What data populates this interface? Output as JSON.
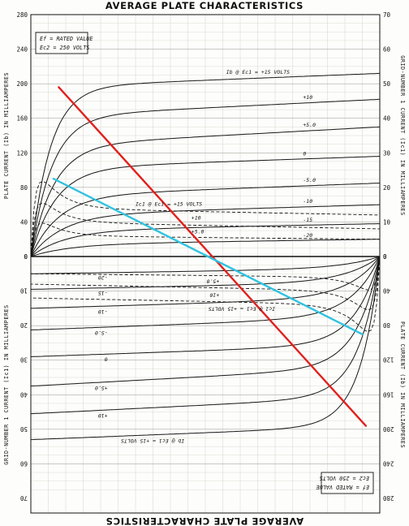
{
  "chart_data": {
    "type": "line",
    "title": "AVERAGE PLATE CHARACTERISTICS",
    "notes": [
      "Ef = RATED VALUE",
      "Ec2 = 250 VOLTS"
    ],
    "left_ylabel": "PLATE CURRENT (Ib) IN MILLIAMPERES",
    "right_ylabel": "GRID-NUMBER 1 CURRENT (Ic1) IN MILLIAMPERES",
    "left_ticks": [
      0,
      40,
      80,
      120,
      160,
      200,
      240,
      280
    ],
    "right_ticks": [
      0,
      10,
      20,
      30,
      40,
      50,
      60,
      70
    ],
    "ylim": [
      0,
      280
    ],
    "xlim": [
      0,
      1
    ],
    "plate_series": [
      {
        "label": "Ib @ Ec1 = +15 VOLTS",
        "sat": 196,
        "end": 212,
        "knee": 0.055
      },
      {
        "label": "+10",
        "sat": 162,
        "end": 182,
        "knee": 0.06
      },
      {
        "label": "+5.0",
        "sat": 128,
        "end": 150,
        "knee": 0.065
      },
      {
        "label": "0",
        "sat": 102,
        "end": 116,
        "knee": 0.07
      },
      {
        "label": "-5.0",
        "sat": 70,
        "end": 85,
        "knee": 0.08
      },
      {
        "label": "-10",
        "sat": 48,
        "end": 60,
        "knee": 0.09
      },
      {
        "label": "-15",
        "sat": 30,
        "end": 38,
        "knee": 0.1
      },
      {
        "label": "-20",
        "sat": 14,
        "end": 20,
        "knee": 0.11
      }
    ],
    "grid_series": [
      {
        "label": "Ic1 @ Ec1 = +15 VOLTS",
        "peak": 31,
        "sat": 14,
        "end": 12
      },
      {
        "label": "+10",
        "peak": 22,
        "sat": 10,
        "end": 8
      },
      {
        "label": "+5.0",
        "peak": 14,
        "sat": 6,
        "end": 5
      }
    ],
    "load_lines": [
      {
        "name": "red",
        "x": [
          0.08,
          0.96
        ],
        "y": [
          196,
          -196
        ],
        "color": "#e0211e"
      },
      {
        "name": "cyan",
        "x": [
          0.065,
          0.95
        ],
        "y": [
          90,
          -90
        ],
        "color": "#2fc3e0"
      }
    ]
  }
}
